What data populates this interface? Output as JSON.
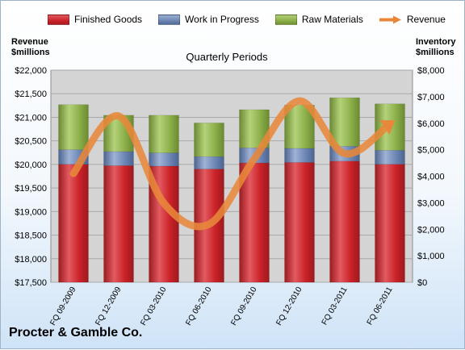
{
  "legend": {
    "finished_goods": "Finished Goods",
    "work_in_progress": "Work in Progress",
    "raw_materials": "Raw Materials",
    "revenue": "Revenue"
  },
  "axes": {
    "left_title_line1": "Revenue",
    "left_title_line2": "$millions",
    "right_title_line1": "Inventory",
    "right_title_line2": "$millions"
  },
  "company": "Procter & Gamble Co.",
  "colors": {
    "finished_goods": "#cc2229",
    "work_in_progress": "#6d86b4",
    "raw_materials": "#8db04a",
    "revenue": "#e8873a",
    "plot_bg": "#d4d4d4"
  },
  "chart_data": {
    "type": "bar",
    "title": "Quarterly Periods",
    "stacked": true,
    "categories": [
      "FQ 09-2009",
      "FQ 12-2009",
      "FQ 03-2010",
      "FQ 06-2010",
      "FQ 09-2010",
      "FQ 12-2010",
      "FQ 03-2011",
      "FQ 06-2011"
    ],
    "series": [
      {
        "name": "Finished Goods",
        "axis": "right",
        "values": [
          4450,
          4400,
          4380,
          4270,
          4500,
          4520,
          4570,
          4450
        ]
      },
      {
        "name": "Work in Progress",
        "axis": "right",
        "values": [
          550,
          530,
          500,
          470,
          570,
          530,
          560,
          530
        ]
      },
      {
        "name": "Raw Materials",
        "axis": "right",
        "values": [
          1700,
          1370,
          1420,
          1270,
          1440,
          1630,
          1830,
          1750
        ]
      },
      {
        "name": "Revenue",
        "axis": "left",
        "type": "line",
        "values": [
          19807,
          21027,
          19178,
          18732,
          20122,
          21347,
          20230,
          20860
        ]
      }
    ],
    "left_axis": {
      "min": 17500,
      "max": 22000,
      "step": 500,
      "ticks": [
        "$17,500",
        "$18,000",
        "$18,500",
        "$19,000",
        "$19,500",
        "$20,000",
        "$20,500",
        "$21,000",
        "$21,500",
        "$22,000"
      ]
    },
    "right_axis": {
      "min": 0,
      "max": 8000,
      "step": 1000,
      "ticks": [
        "$0",
        "$1,000",
        "$2,000",
        "$3,000",
        "$4,000",
        "$5,000",
        "$6,000",
        "$7,000",
        "$8,000"
      ]
    },
    "grid": true,
    "legend_position": "top"
  }
}
